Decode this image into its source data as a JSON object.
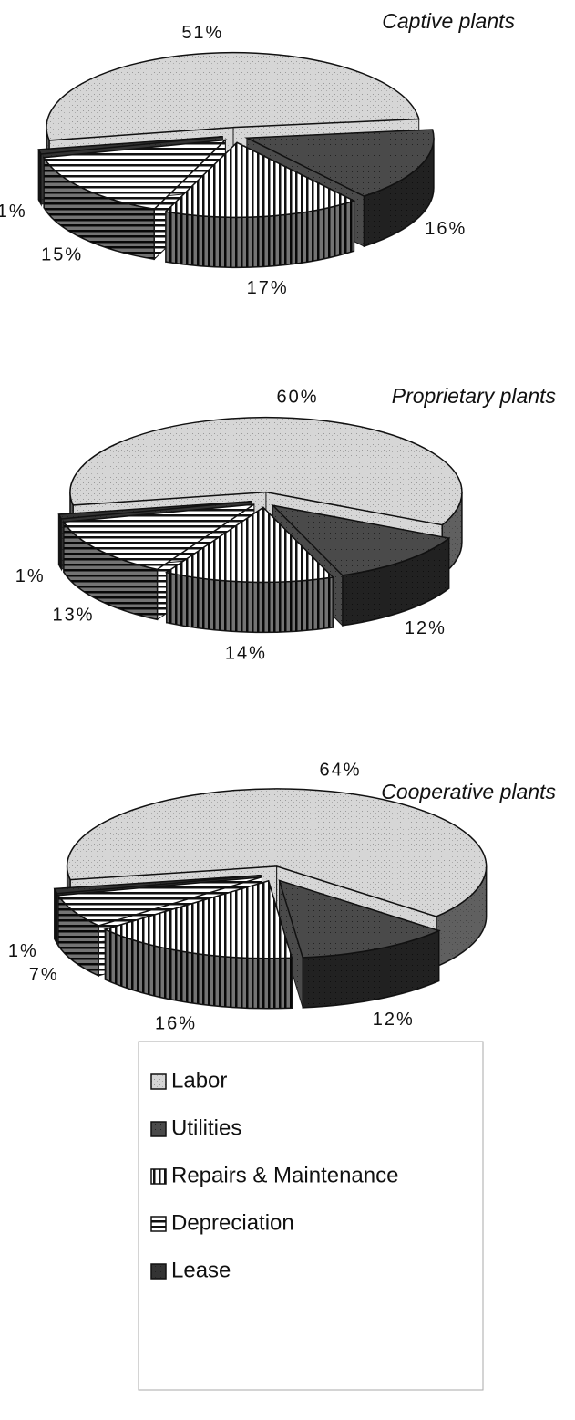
{
  "legend": {
    "categories": [
      "Labor",
      "Utilities",
      "Repairs & Maintenance",
      "Depreciation",
      "Lease"
    ],
    "colors": [
      "#d6d6d6",
      "#4a4a4a",
      "#ffffff",
      "#ffffff",
      "#333333"
    ],
    "hatch": [
      "speckle",
      "solid",
      "vertical",
      "horizontal",
      "solid"
    ]
  },
  "chart_data": [
    {
      "type": "pie",
      "title": "Captive plants",
      "values": [
        51,
        16,
        17,
        15,
        1
      ],
      "value_labels": [
        "51%",
        "16%",
        "17%",
        "15%",
        "1%"
      ]
    },
    {
      "type": "pie",
      "title": "Proprietary plants",
      "values": [
        60,
        12,
        14,
        13,
        1
      ],
      "value_labels": [
        "60%",
        "12%",
        "14%",
        "13%",
        "1%"
      ]
    },
    {
      "type": "pie",
      "title": "Cooperative plants",
      "values": [
        64,
        12,
        16,
        7,
        1
      ],
      "value_labels": [
        "64%",
        "12%",
        "16%",
        "7%",
        "1%"
      ]
    }
  ]
}
